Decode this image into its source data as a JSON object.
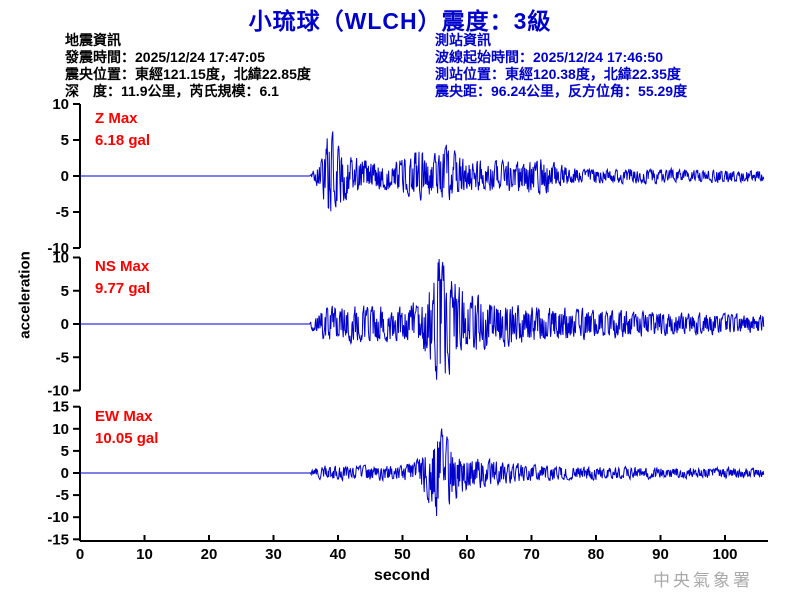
{
  "title": "小琉球（WLCH）震度：3級",
  "watermark": "中央氣象署",
  "colors": {
    "accent_blue": "#0000cc",
    "trace_blue": "#0000cc",
    "max_red": "#ff0000",
    "axis_black": "#000000",
    "watermark_gray": "#a9a9a9"
  },
  "event_info": {
    "heading": "地震資訊",
    "lines": [
      "發震時間：2025/12/24 17:47:05",
      "震央位置：東經121.15度，北緯22.85度",
      "深　度：11.9公里，芮氏規模：6.1"
    ]
  },
  "station_info": {
    "heading": "測站資訊",
    "lines": [
      "波線起始時間：2025/12/24 17:46:50",
      "測站位置：東經120.38度，北緯22.35度",
      "震央距：96.24公里，反方位角：55.29度"
    ]
  },
  "chart_data": {
    "type": "line",
    "xlabel": "second",
    "ylabel": "acceleration",
    "x_range": [
      0,
      106
    ],
    "x_ticks": [
      0,
      10,
      20,
      30,
      40,
      50,
      60,
      70,
      80,
      90,
      100
    ],
    "sample_interval_s": 0.08,
    "quiet_until_s": 35.6,
    "panels": [
      {
        "id": "Z",
        "max_label": "Z Max",
        "max_value": "6.18 gal",
        "max_gal": 6.18,
        "peak_time_s": 38.6,
        "ylim": [
          -10,
          10
        ],
        "yticks": [
          10,
          5,
          0,
          -5,
          -10
        ],
        "seed": 20251224,
        "envelope": [
          [
            0,
            0
          ],
          [
            35.6,
            0
          ],
          [
            36,
            0.7
          ],
          [
            37.5,
            3.0
          ],
          [
            38.6,
            6.3
          ],
          [
            40,
            4.5
          ],
          [
            42,
            2.8
          ],
          [
            45,
            2.2
          ],
          [
            48,
            2.0
          ],
          [
            51,
            2.6
          ],
          [
            53,
            4.2
          ],
          [
            55,
            3.0
          ],
          [
            57,
            4.3
          ],
          [
            59,
            2.6
          ],
          [
            62,
            2.2
          ],
          [
            65,
            2.0
          ],
          [
            68,
            2.4
          ],
          [
            72,
            2.6
          ],
          [
            75,
            1.4
          ],
          [
            78,
            1.1
          ],
          [
            82,
            1.0
          ],
          [
            88,
            1.1
          ],
          [
            95,
            0.9
          ],
          [
            100,
            1.0
          ],
          [
            106,
            0.8
          ]
        ]
      },
      {
        "id": "NS",
        "max_label": "NS Max",
        "max_value": "9.77 gal",
        "max_gal": 9.77,
        "peak_time_s": 55.8,
        "ylim": [
          -10,
          10
        ],
        "yticks": [
          10,
          5,
          0,
          -5,
          -10
        ],
        "seed": 17465,
        "envelope": [
          [
            0,
            0
          ],
          [
            35.6,
            0
          ],
          [
            36,
            1.0
          ],
          [
            38,
            2.3
          ],
          [
            42,
            2.4
          ],
          [
            46,
            2.6
          ],
          [
            50,
            2.3
          ],
          [
            53,
            3.6
          ],
          [
            55,
            6.5
          ],
          [
            55.8,
            9.9
          ],
          [
            57,
            7.0
          ],
          [
            58.5,
            5.5
          ],
          [
            60,
            4.5
          ],
          [
            62,
            4.0
          ],
          [
            65,
            3.2
          ],
          [
            70,
            2.6
          ],
          [
            75,
            2.2
          ],
          [
            80,
            2.0
          ],
          [
            85,
            1.8
          ],
          [
            90,
            1.6
          ],
          [
            95,
            1.5
          ],
          [
            100,
            1.4
          ],
          [
            106,
            1.3
          ]
        ]
      },
      {
        "id": "EW",
        "max_label": "EW Max",
        "max_value": "10.05 gal",
        "max_gal": 10.05,
        "peak_time_s": 55.4,
        "ylim": [
          -15,
          15
        ],
        "yticks": [
          15,
          10,
          5,
          0,
          -5,
          -10,
          -15
        ],
        "seed": 5529,
        "envelope": [
          [
            0,
            0
          ],
          [
            35.6,
            0
          ],
          [
            36,
            0.8
          ],
          [
            38,
            1.7
          ],
          [
            42,
            1.5
          ],
          [
            46,
            1.7
          ],
          [
            50,
            1.5
          ],
          [
            52,
            2.6
          ],
          [
            54,
            6.0
          ],
          [
            55.4,
            10.3
          ],
          [
            56.5,
            8.5
          ],
          [
            58,
            6.0
          ],
          [
            60,
            4.2
          ],
          [
            62,
            3.4
          ],
          [
            64,
            2.8
          ],
          [
            67,
            2.2
          ],
          [
            70,
            1.9
          ],
          [
            73,
            1.7
          ],
          [
            76,
            1.5
          ],
          [
            80,
            1.6
          ],
          [
            84,
            1.3
          ],
          [
            88,
            1.4
          ],
          [
            92,
            1.2
          ],
          [
            96,
            1.1
          ],
          [
            100,
            1.2
          ],
          [
            106,
            1.0
          ]
        ]
      }
    ]
  }
}
